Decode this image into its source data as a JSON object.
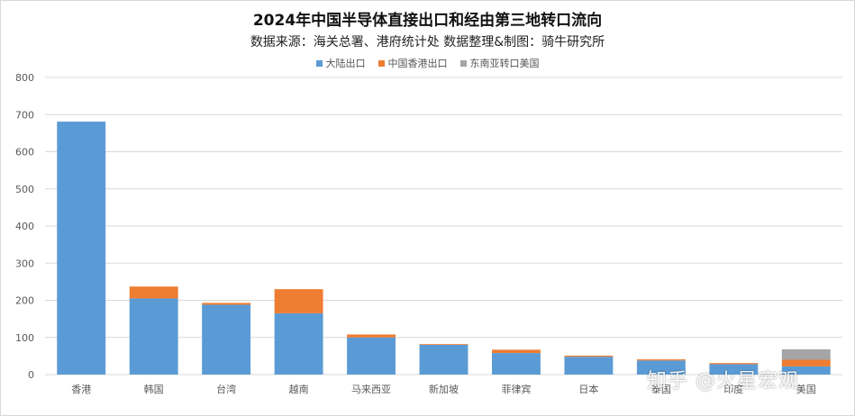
{
  "chart_data": {
    "type": "bar",
    "stacked": true,
    "title": "2024年中国半导体直接出口和经由第三地转口流向",
    "subtitle": "数据来源：海关总署、港府统计处  数据整理&制图：骑牛研究所",
    "categories": [
      "香港",
      "韩国",
      "台湾",
      "越南",
      "马来西亚",
      "新加坡",
      "菲律宾",
      "日本",
      "泰国",
      "印度",
      "美国"
    ],
    "series": [
      {
        "name": "大陆出口",
        "color": "#5B9BD5",
        "values": [
          681,
          205,
          188,
          165,
          100,
          80,
          58,
          48,
          38,
          28,
          22
        ]
      },
      {
        "name": "中国香港出口",
        "color": "#ED7D31",
        "values": [
          0,
          32,
          5,
          65,
          8,
          2,
          9,
          3,
          3,
          3,
          18
        ]
      },
      {
        "name": "东南亚转口美国",
        "color": "#A5A5A5",
        "values": [
          0,
          0,
          0,
          0,
          0,
          0,
          0,
          0,
          0,
          0,
          28
        ]
      }
    ],
    "yticks": [
      0,
      100,
      200,
      300,
      400,
      500,
      600,
      700,
      800
    ],
    "ylim": [
      0,
      800
    ],
    "grid": true,
    "legend_position": "top"
  },
  "watermark": "知乎 @火星宏观"
}
